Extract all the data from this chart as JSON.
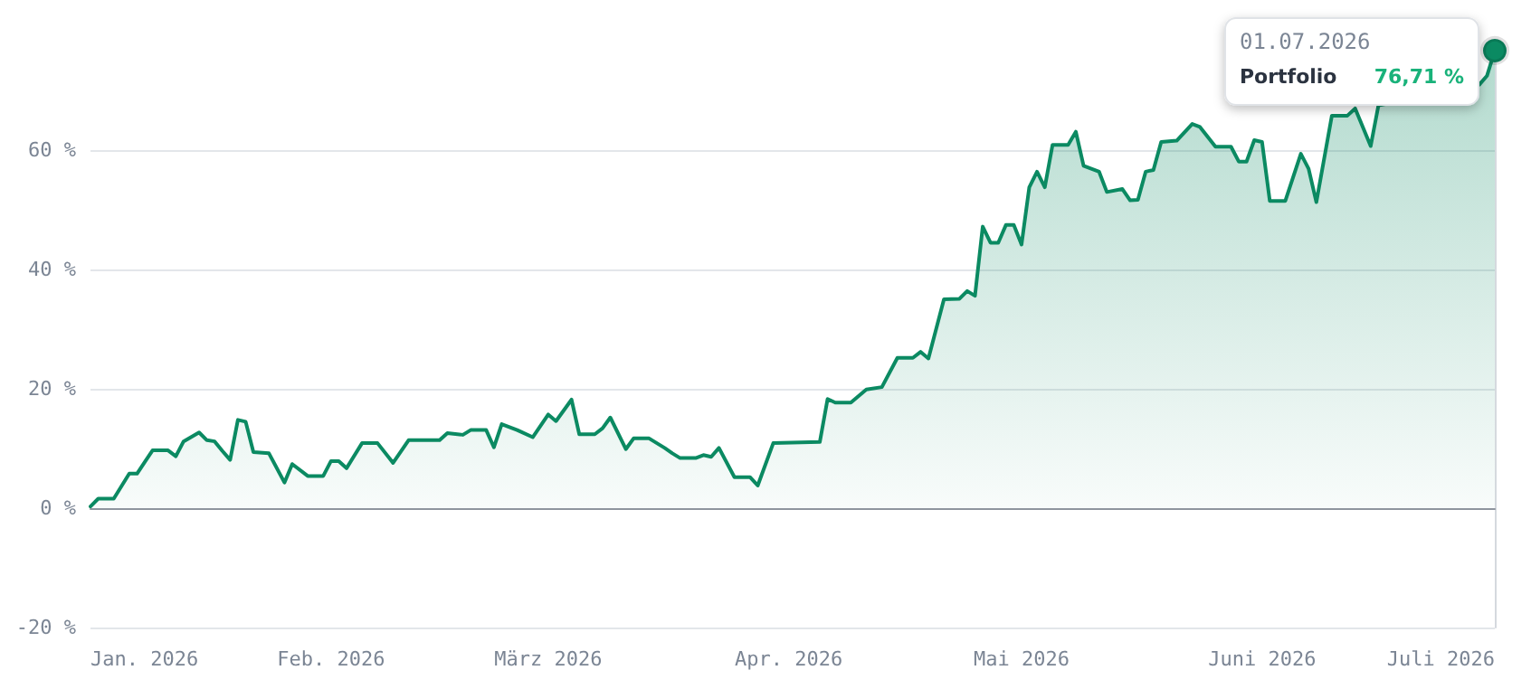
{
  "chart_data": {
    "type": "area",
    "x": [
      "2026-01-01",
      "2026-01-02",
      "2026-01-04",
      "2026-01-06",
      "2026-01-07",
      "2026-01-09",
      "2026-01-11",
      "2026-01-12",
      "2026-01-13",
      "2026-01-15",
      "2026-01-16",
      "2026-01-17",
      "2026-01-18",
      "2026-01-19",
      "2026-01-20",
      "2026-01-21",
      "2026-01-22",
      "2026-01-24",
      "2026-01-26",
      "2026-01-27",
      "2026-01-29",
      "2026-01-31",
      "2026-02-01",
      "2026-02-02",
      "2026-02-03",
      "2026-02-05",
      "2026-02-07",
      "2026-02-09",
      "2026-02-11",
      "2026-02-15",
      "2026-02-16",
      "2026-02-18",
      "2026-02-19",
      "2026-02-21",
      "2026-02-22",
      "2026-02-23",
      "2026-02-25",
      "2026-02-27",
      "2026-03-01",
      "2026-03-02",
      "2026-03-04",
      "2026-03-05",
      "2026-03-07",
      "2026-03-08",
      "2026-03-09",
      "2026-03-11",
      "2026-03-12",
      "2026-03-14",
      "2026-03-16",
      "2026-03-17",
      "2026-03-18",
      "2026-03-20",
      "2026-03-21",
      "2026-03-22",
      "2026-03-23",
      "2026-03-25",
      "2026-03-27",
      "2026-03-28",
      "2026-03-30",
      "2026-04-05",
      "2026-04-06",
      "2026-04-07",
      "2026-04-09",
      "2026-04-11",
      "2026-04-13",
      "2026-04-15",
      "2026-04-17",
      "2026-04-18",
      "2026-04-19",
      "2026-04-21",
      "2026-04-23",
      "2026-04-24",
      "2026-04-25",
      "2026-04-26",
      "2026-04-27",
      "2026-04-28",
      "2026-04-29",
      "2026-04-30",
      "2026-05-01",
      "2026-05-02",
      "2026-05-03",
      "2026-05-04",
      "2026-05-05",
      "2026-05-07",
      "2026-05-08",
      "2026-05-09",
      "2026-05-11",
      "2026-05-12",
      "2026-05-14",
      "2026-05-15",
      "2026-05-16",
      "2026-05-17",
      "2026-05-18",
      "2026-05-19",
      "2026-05-21",
      "2026-05-23",
      "2026-05-24",
      "2026-05-26",
      "2026-05-28",
      "2026-05-29",
      "2026-05-30",
      "2026-05-31",
      "2026-06-01",
      "2026-06-02",
      "2026-06-04",
      "2026-06-06",
      "2026-06-07",
      "2026-06-08",
      "2026-06-10",
      "2026-06-12",
      "2026-06-13",
      "2026-06-15",
      "2026-06-16",
      "2026-06-29",
      "2026-06-30",
      "2026-07-01"
    ],
    "series": [
      {
        "name": "Portfolio",
        "color": "#0b8a62",
        "values": [
          0.3,
          1.6,
          1.6,
          5.8,
          5.8,
          9.7,
          9.7,
          8.7,
          11.2,
          12.7,
          11.4,
          11.2,
          9.6,
          8.1,
          14.8,
          14.5,
          9.4,
          9.2,
          4.3,
          7.4,
          5.4,
          5.4,
          7.9,
          7.9,
          6.7,
          10.9,
          10.9,
          7.6,
          11.4,
          11.4,
          12.6,
          12.3,
          13.1,
          13.1,
          10.2,
          14.1,
          13.1,
          11.9,
          15.7,
          14.6,
          18.2,
          12.4,
          12.4,
          13.4,
          15.2,
          9.9,
          11.7,
          11.7,
          10.1,
          9.2,
          8.4,
          8.4,
          8.9,
          8.6,
          10.1,
          5.2,
          5.2,
          3.8,
          10.9,
          11.1,
          18.3,
          17.7,
          17.7,
          19.9,
          20.3,
          25.2,
          25.2,
          26.2,
          25.1,
          35.0,
          35.1,
          36.4,
          35.6,
          47.2,
          44.5,
          44.5,
          47.5,
          47.5,
          44.2,
          53.8,
          56.4,
          53.8,
          60.9,
          60.9,
          63.1,
          57.4,
          56.4,
          53.0,
          53.5,
          51.6,
          51.7,
          56.4,
          56.7,
          61.4,
          61.6,
          64.4,
          63.9,
          60.6,
          60.6,
          58.1,
          58.1,
          61.7,
          61.4,
          51.5,
          51.5,
          59.4,
          56.9,
          51.3,
          65.8,
          65.8,
          67.0,
          60.7,
          67.5,
          71.0,
          72.5,
          76.71
        ],
        "value_labels": [
          null,
          null,
          null,
          null,
          null,
          null,
          null,
          null,
          null,
          null,
          null,
          null,
          null,
          null,
          null,
          null,
          null,
          null,
          null,
          null,
          null,
          null,
          null,
          null,
          null,
          null,
          null,
          null,
          null,
          null,
          null,
          null,
          null,
          null,
          null,
          null,
          null,
          null,
          null,
          null,
          null,
          null,
          null,
          null,
          null,
          null,
          null,
          null,
          null,
          null,
          null,
          null,
          null,
          null,
          null,
          null,
          null,
          null,
          null,
          null,
          null,
          null,
          null,
          null,
          null,
          null,
          null,
          null,
          null,
          null,
          null,
          null,
          null,
          null,
          null,
          null,
          null,
          null,
          null,
          null,
          null,
          null,
          null,
          null,
          null,
          null,
          null,
          null,
          null,
          null,
          null,
          null,
          null,
          null,
          null,
          null,
          null,
          null,
          null,
          null,
          null,
          null,
          null,
          null,
          null,
          null,
          null,
          null,
          null,
          null,
          null,
          null,
          null,
          null,
          null,
          "76,71 %"
        ]
      }
    ],
    "xlim": [
      "2026-01-01",
      "2026-07-01"
    ],
    "xticks": [
      {
        "value": "2026-01-01",
        "label": "Jan. 2026"
      },
      {
        "value": "2026-02-01",
        "label": "Feb. 2026"
      },
      {
        "value": "2026-03-01",
        "label": "März 2026"
      },
      {
        "value": "2026-04-01",
        "label": "Apr. 2026"
      },
      {
        "value": "2026-05-01",
        "label": "Mai 2026"
      },
      {
        "value": "2026-06-01",
        "label": "Juni 2026"
      },
      {
        "value": "2026-07-01",
        "label": "Juli 2026"
      }
    ],
    "ylim": [
      -20,
      77
    ],
    "yticks": [
      {
        "value": -20,
        "label": "-20 %"
      },
      {
        "value": 0,
        "label": "0 %"
      },
      {
        "value": 20,
        "label": "20 %"
      },
      {
        "value": 40,
        "label": "40 %"
      },
      {
        "value": 60,
        "label": "60 %"
      }
    ],
    "annotations": [
      "01.07.2026"
    ],
    "grid": "y",
    "marker": "none",
    "line_style": "solid",
    "legend": false
  }
}
